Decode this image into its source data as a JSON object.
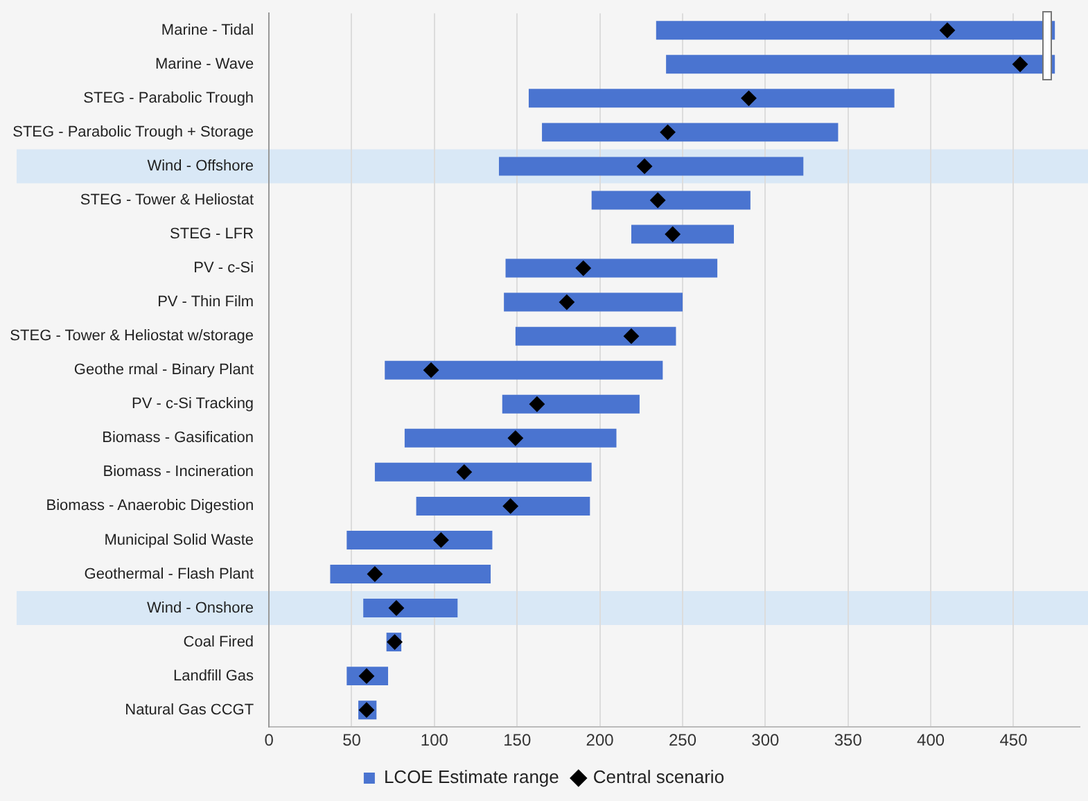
{
  "chart_data": {
    "type": "bar",
    "orientation": "horizontal",
    "categories": [
      "Marine - Tidal",
      "Marine - Wave",
      "STEG - Parabolic Trough",
      "STEG - Parabolic Trough + Storage",
      "Wind - Offshore",
      "STEG - Tower & Heliostat",
      "STEG - LFR",
      "PV - c-Si",
      "PV - Thin Film",
      "STEG - Tower & Heliostat w/storage",
      "Geothe rmal - Binary Plant",
      "PV - c-Si Tracking",
      "Biomass - Gasification",
      "Biomass - Incineration",
      "Biomass - Anaerobic Digestion",
      "Municipal Solid Waste",
      "Geothermal - Flash Plant",
      "Wind - Onshore",
      "Coal Fired",
      "Landfill Gas",
      "Natural Gas CCGT"
    ],
    "series": [
      {
        "name": "LCOE Estimate range",
        "color": "#4a74d0",
        "base": [
          234,
          240,
          157,
          165,
          139,
          195,
          219,
          143,
          142,
          149,
          70,
          141,
          82,
          64,
          89,
          47,
          37,
          57,
          71,
          47,
          54
        ],
        "values": [
          241,
          235,
          221,
          179,
          184,
          96,
          62,
          128,
          108,
          97,
          168,
          83,
          128,
          131,
          105,
          88,
          97,
          57,
          9,
          25,
          11
        ]
      },
      {
        "name": "Central scenario",
        "type": "scatter",
        "color": "#000000",
        "marker": "diamond",
        "values": [
          410,
          454,
          290,
          241,
          227,
          235,
          244,
          190,
          180,
          219,
          98,
          162,
          149,
          118,
          146,
          104,
          64,
          77,
          76,
          59,
          59
        ]
      }
    ],
    "xlim": [
      0,
      490
    ],
    "xticks": [
      0,
      50,
      100,
      150,
      200,
      250,
      300,
      350,
      400,
      450
    ],
    "grid": "x",
    "legend": "bottom",
    "bands": [
      {
        "axis": "y",
        "from": "Wind - Offshore",
        "to": "Wind - Offshore",
        "color": "#cfe3f5"
      },
      {
        "axis": "y",
        "from": "Wind - Onshore",
        "to": "Wind - Onshore",
        "color": "#cfe3f5"
      }
    ]
  }
}
